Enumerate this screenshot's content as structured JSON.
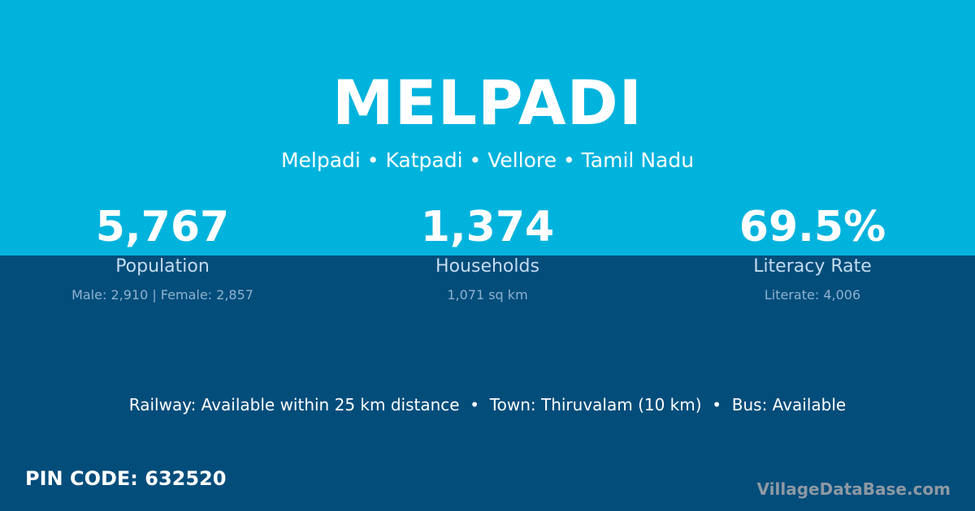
{
  "colors": {
    "header_bg": "#00b3dd",
    "body_bg": "#034d7b"
  },
  "title": "MELPADI",
  "subtitle": "Melpadi • Katpadi • Vellore • Tamil Nadu",
  "stats": [
    {
      "value": "5,767",
      "label": "Population",
      "detail": "Male: 2,910 | Female: 2,857"
    },
    {
      "value": "1,374",
      "label": "Households",
      "detail": "1,071 sq km"
    },
    {
      "value": "69.5%",
      "label": "Literacy Rate",
      "detail": "Literate: 4,006"
    }
  ],
  "facts": "Railway: Available within 25 km distance  •  Town: Thiruvalam (10 km)  •  Bus: Available",
  "pin_code": "PIN CODE: 632520",
  "watermark": "VillageDataBase.com"
}
